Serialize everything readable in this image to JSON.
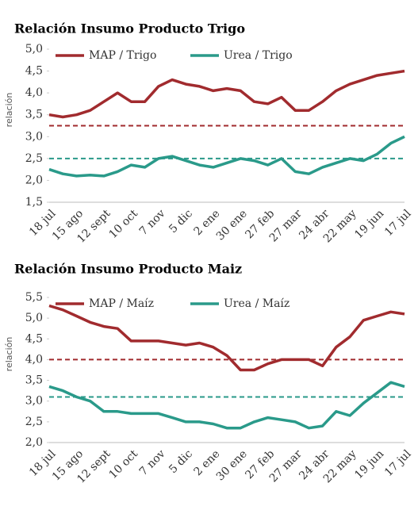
{
  "chart_data": [
    {
      "type": "line",
      "title": "Relación Insumo Producto Trigo",
      "y_label": "relación",
      "categories": [
        "18 jul",
        null,
        "15 ago",
        null,
        "12 sept",
        null,
        "10 oct",
        null,
        "7 nov",
        null,
        "5 dic",
        null,
        "2 ene",
        null,
        "30 ene",
        null,
        "27 feb",
        null,
        "27 mar",
        null,
        "24 abr",
        null,
        "22 may",
        null,
        "19 jun",
        null,
        "17 jul"
      ],
      "series": [
        {
          "name": "MAP / Trigo",
          "color": "#a12b2e",
          "values": [
            3.5,
            3.45,
            3.5,
            3.6,
            3.8,
            4.0,
            3.8,
            3.8,
            4.15,
            4.3,
            4.2,
            4.15,
            4.05,
            4.1,
            4.05,
            3.8,
            3.75,
            3.9,
            3.6,
            3.6,
            3.8,
            4.05,
            4.2,
            4.3,
            4.4,
            4.45,
            4.5
          ]
        },
        {
          "name": "Urea / Trigo",
          "color": "#2a9a8a",
          "values": [
            2.25,
            2.15,
            2.1,
            2.12,
            2.1,
            2.2,
            2.35,
            2.3,
            2.5,
            2.55,
            2.45,
            2.35,
            2.3,
            2.4,
            2.5,
            2.45,
            2.35,
            2.5,
            2.2,
            2.15,
            2.3,
            2.4,
            2.5,
            2.45,
            2.6,
            2.85,
            3.0
          ]
        }
      ],
      "reference_lines": [
        {
          "value": 3.25,
          "color": "#a12b2e"
        },
        {
          "value": 2.5,
          "color": "#2a9a8a"
        }
      ],
      "ylim": [
        1.5,
        5.0
      ],
      "yticks": [
        {
          "value": 1.5,
          "label": "1,5"
        },
        {
          "value": 2.0,
          "label": "2,0"
        },
        {
          "value": 2.5,
          "label": "2,5"
        },
        {
          "value": 3.0,
          "label": "3,0"
        },
        {
          "value": 3.5,
          "label": "3,5"
        },
        {
          "value": 4.0,
          "label": "4,0"
        },
        {
          "value": 4.5,
          "label": "4,5"
        },
        {
          "value": 5.0,
          "label": "5,0"
        }
      ],
      "legend": "top"
    },
    {
      "type": "line",
      "title": "Relación Insumo Producto Maiz",
      "y_label": "relación",
      "categories": [
        "18 jul",
        null,
        "15 ago",
        null,
        "12 sept",
        null,
        "10 oct",
        null,
        "7 nov",
        null,
        "5 dic",
        null,
        "2 ene",
        null,
        "30 ene",
        null,
        "27 feb",
        null,
        "27 mar",
        null,
        "24 abr",
        null,
        "22 may",
        null,
        "19 jun",
        null,
        "17 jul"
      ],
      "series": [
        {
          "name": "MAP / Maíz",
          "color": "#a12b2e",
          "values": [
            5.3,
            5.2,
            5.05,
            4.9,
            4.8,
            4.75,
            4.45,
            4.45,
            4.45,
            4.4,
            4.35,
            4.4,
            4.3,
            4.1,
            3.75,
            3.75,
            3.9,
            4.0,
            4.0,
            4.0,
            3.85,
            4.3,
            4.55,
            4.95,
            5.05,
            5.15,
            5.1
          ]
        },
        {
          "name": "Urea / Maíz",
          "color": "#2a9a8a",
          "values": [
            3.35,
            3.25,
            3.1,
            3.0,
            2.75,
            2.75,
            2.7,
            2.7,
            2.7,
            2.6,
            2.5,
            2.5,
            2.45,
            2.35,
            2.35,
            2.5,
            2.6,
            2.55,
            2.5,
            2.35,
            2.4,
            2.75,
            2.65,
            2.95,
            3.2,
            3.45,
            3.35
          ]
        }
      ],
      "reference_lines": [
        {
          "value": 4.0,
          "color": "#a12b2e"
        },
        {
          "value": 3.1,
          "color": "#2a9a8a"
        }
      ],
      "ylim": [
        2.0,
        5.5
      ],
      "yticks": [
        {
          "value": 2.0,
          "label": "2,0"
        },
        {
          "value": 2.5,
          "label": "2,5"
        },
        {
          "value": 3.0,
          "label": "3,0"
        },
        {
          "value": 3.5,
          "label": "3,5"
        },
        {
          "value": 4.0,
          "label": "4,0"
        },
        {
          "value": 4.5,
          "label": "4,5"
        },
        {
          "value": 5.0,
          "label": "5,0"
        },
        {
          "value": 5.5,
          "label": "5,5"
        }
      ],
      "legend": "top"
    }
  ]
}
